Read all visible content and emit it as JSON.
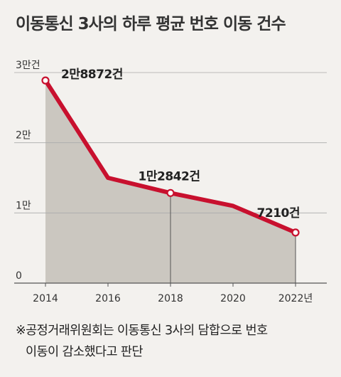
{
  "title": "이동통신 3사의 하루 평균 번호 이동 건수",
  "footnote": {
    "line1": "※공정거래위원회는 이동통신 3사의 담합으로 번호",
    "line2": "이동이 감소했다고 판단"
  },
  "colors": {
    "line": "#c8102e",
    "area": "#cbc7c0",
    "background": "#f3f1ee"
  },
  "chart_data": {
    "type": "area",
    "title": "이동통신 3사의 하루 평균 번호 이동 건수",
    "xlabel": "",
    "ylabel": "",
    "x": [
      2014,
      2016,
      2018,
      2020,
      2022
    ],
    "series": [
      {
        "values": [
          28872,
          15000,
          12842,
          11000,
          7210
        ]
      }
    ],
    "ylim": [
      0,
      30000
    ],
    "xlim": [
      2013,
      2023
    ],
    "yticks": [
      {
        "value": 0,
        "label": "0"
      },
      {
        "value": 10000,
        "label": "1만"
      },
      {
        "value": 20000,
        "label": "2만"
      },
      {
        "value": 30000,
        "label": "3만건"
      }
    ],
    "xticks": [
      {
        "value": 2014,
        "label": "2014"
      },
      {
        "value": 2016,
        "label": "2016"
      },
      {
        "value": 2018,
        "label": "2018"
      },
      {
        "value": 2020,
        "label": "2020"
      },
      {
        "value": 2022,
        "label": "2022년"
      }
    ],
    "annotations": [
      {
        "x": 2014,
        "y": 28872,
        "label": "2만8872건"
      },
      {
        "x": 2018,
        "y": 12842,
        "label": "1만2842건"
      },
      {
        "x": 2022,
        "y": 7210,
        "label": "7210건"
      }
    ],
    "grid": true,
    "legend": "none"
  }
}
